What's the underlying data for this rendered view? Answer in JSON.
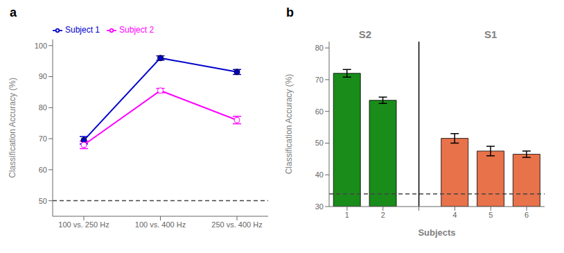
{
  "chart_data": [
    {
      "type": "line",
      "title": "a",
      "y_label": "Classification Accuracy (%)",
      "categories": [
        "100 vs. 250 Hz",
        "100 vs. 400 Hz",
        "250 vs. 400 Hz"
      ],
      "series": [
        {
          "name": "Subject 1",
          "color": "#0000CC",
          "marker": "circle",
          "values": [
            69.5,
            96.0,
            91.5
          ],
          "errors": [
            1.2,
            0.7,
            0.8
          ]
        },
        {
          "name": "Subject 2",
          "color": "#FF00FF",
          "marker": "open_circle",
          "values": [
            68.0,
            85.5,
            76.0
          ],
          "errors": [
            1.2,
            0.7,
            1.2
          ]
        }
      ],
      "ylim": [
        45,
        102
      ],
      "yticks": [
        50,
        60,
        70,
        80,
        90,
        100
      ],
      "grid": false,
      "legend": "top",
      "reference_line": {
        "value": 50,
        "color": "#444444",
        "line_style": "dashed"
      }
    },
    {
      "type": "bar",
      "title": "b",
      "x_label": "Subjects",
      "y_label": "Classification Accuracy (%)",
      "categories": [
        "1",
        "2",
        null,
        "4",
        "5",
        "6"
      ],
      "values": [
        72.0,
        63.5,
        null,
        51.5,
        47.5,
        46.5
      ],
      "errors": [
        1.2,
        1.0,
        null,
        1.5,
        1.5,
        1.0
      ],
      "colors": [
        "#1a8c1a",
        "#1a8c1a",
        null,
        "#E8724A",
        "#E8724A",
        "#E8724A"
      ],
      "ylim": [
        30,
        82
      ],
      "yticks": [
        30,
        40,
        50,
        60,
        70,
        80
      ],
      "grid": false,
      "reference_line": {
        "value": 34.0,
        "color": "#444444",
        "line_style": "dashed"
      },
      "divider": {
        "color": "#000000",
        "line_style": "solid"
      },
      "annotations": [
        "S2",
        "S1"
      ]
    }
  ]
}
